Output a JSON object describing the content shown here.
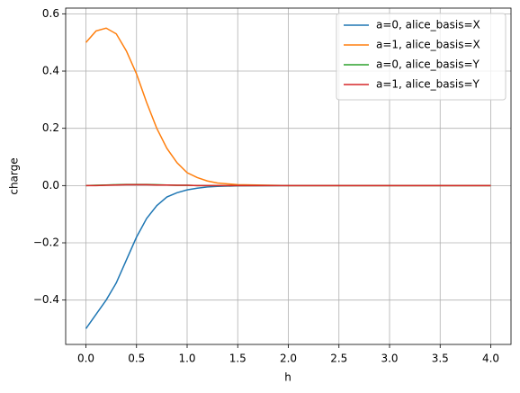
{
  "chart_data": {
    "type": "line",
    "x_label": "h",
    "y_label": "charge",
    "x": [
      0,
      0.1,
      0.2,
      0.3,
      0.4,
      0.5,
      0.6,
      0.7,
      0.8,
      0.9,
      1.0,
      1.1,
      1.2,
      1.3,
      1.5,
      2.0,
      3.0,
      4.0
    ],
    "series": [
      {
        "name": "a=0, alice_basis=X",
        "color": "#1f77b4",
        "values": [
          -0.5,
          -0.45,
          -0.4,
          -0.34,
          -0.26,
          -0.18,
          -0.115,
          -0.07,
          -0.04,
          -0.025,
          -0.015,
          -0.009,
          -0.005,
          -0.003,
          -0.001,
          0,
          0,
          0
        ]
      },
      {
        "name": "a=1, alice_basis=X",
        "color": "#ff7f0e",
        "values": [
          0.5,
          0.54,
          0.55,
          0.53,
          0.47,
          0.39,
          0.29,
          0.2,
          0.13,
          0.08,
          0.045,
          0.028,
          0.016,
          0.009,
          0.003,
          0,
          0,
          0
        ]
      },
      {
        "name": "a=0, alice_basis=Y",
        "color": "#2ca02c",
        "values": [
          0,
          0.001,
          0.002,
          0.003,
          0.004,
          0.004,
          0.004,
          0.003,
          0.002,
          0.001,
          0.001,
          0,
          0,
          0,
          0,
          0,
          0,
          0
        ]
      },
      {
        "name": "a=1, alice_basis=Y",
        "color": "#d62728",
        "values": [
          0,
          0,
          0.001,
          0.002,
          0.003,
          0.003,
          0.003,
          0.002,
          0.002,
          0.001,
          0.001,
          0,
          0,
          0,
          0,
          0,
          0,
          0
        ]
      }
    ],
    "xlim": [
      -0.2,
      4.2
    ],
    "ylim": [
      -0.555,
      0.62
    ],
    "xticks": [
      {
        "value": 0,
        "label": "0.0"
      },
      {
        "value": 0.5,
        "label": "0.5"
      },
      {
        "value": 1,
        "label": "1.0"
      },
      {
        "value": 1.5,
        "label": "1.5"
      },
      {
        "value": 2,
        "label": "2.0"
      },
      {
        "value": 2.5,
        "label": "2.5"
      },
      {
        "value": 3,
        "label": "3.0"
      },
      {
        "value": 3.5,
        "label": "3.5"
      },
      {
        "value": 4,
        "label": "4.0"
      }
    ],
    "yticks": [
      {
        "value": -0.4,
        "label": "−0.4"
      },
      {
        "value": -0.2,
        "label": "−0.2"
      },
      {
        "value": 0,
        "label": "0.0"
      },
      {
        "value": 0.2,
        "label": "0.2"
      },
      {
        "value": 0.4,
        "label": "0.4"
      },
      {
        "value": 0.6,
        "label": "0.6"
      }
    ],
    "grid": true,
    "legend": "upper-right"
  }
}
